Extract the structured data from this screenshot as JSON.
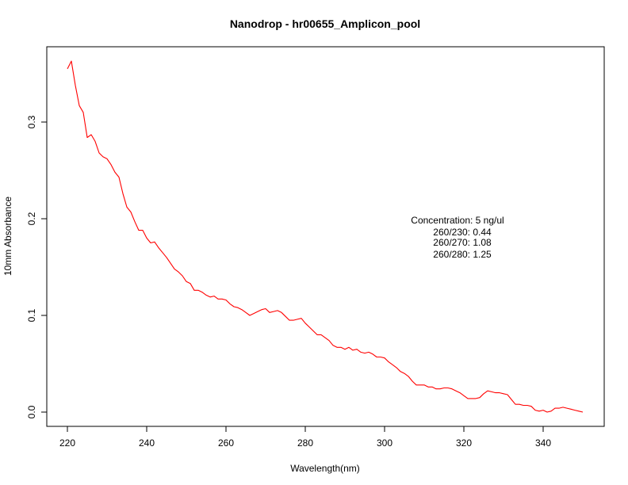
{
  "chart_data": {
    "type": "line",
    "title": "Nanodrop - hr00655_Amplicon_pool",
    "xlabel": "Wavelength(nm)",
    "ylabel": "10mm Absorbance",
    "xlim": [
      220,
      350
    ],
    "ylim": [
      0,
      0.365
    ],
    "grid": false,
    "x_ticks": [
      220,
      240,
      260,
      280,
      300,
      320,
      340
    ],
    "y_ticks": [
      0.0,
      0.1,
      0.2,
      0.3
    ],
    "y_tick_labels": [
      "0.0",
      "0.1",
      "0.2",
      "0.3"
    ],
    "series": [
      {
        "color": "#ff0000",
        "x": [
          220,
          221,
          222,
          223,
          224,
          225,
          226,
          227,
          228,
          229,
          230,
          231,
          232,
          233,
          234,
          235,
          236,
          237,
          238,
          239,
          240,
          241,
          242,
          243,
          244,
          245,
          246,
          247,
          248,
          249,
          250,
          251,
          252,
          253,
          254,
          255,
          256,
          257,
          258,
          259,
          260,
          261,
          262,
          263,
          264,
          265,
          266,
          267,
          268,
          269,
          270,
          271,
          272,
          273,
          274,
          275,
          276,
          277,
          278,
          279,
          280,
          281,
          282,
          283,
          284,
          285,
          286,
          287,
          288,
          289,
          290,
          291,
          292,
          293,
          294,
          295,
          296,
          297,
          298,
          299,
          300,
          301,
          302,
          303,
          304,
          305,
          306,
          307,
          308,
          309,
          310,
          311,
          312,
          313,
          314,
          315,
          316,
          317,
          318,
          319,
          320,
          321,
          322,
          323,
          324,
          325,
          326,
          327,
          328,
          329,
          330,
          331,
          332,
          333,
          334,
          335,
          336,
          337,
          338,
          339,
          340,
          341,
          342,
          343,
          344,
          345,
          346,
          347,
          348,
          349,
          350
        ],
        "y": [
          0.355,
          0.363,
          0.338,
          0.317,
          0.31,
          0.284,
          0.287,
          0.28,
          0.268,
          0.264,
          0.262,
          0.256,
          0.248,
          0.243,
          0.226,
          0.212,
          0.207,
          0.197,
          0.188,
          0.188,
          0.18,
          0.175,
          0.176,
          0.17,
          0.165,
          0.16,
          0.154,
          0.148,
          0.145,
          0.141,
          0.135,
          0.133,
          0.126,
          0.126,
          0.124,
          0.121,
          0.119,
          0.12,
          0.117,
          0.117,
          0.116,
          0.112,
          0.109,
          0.108,
          0.106,
          0.103,
          0.1,
          0.102,
          0.104,
          0.106,
          0.107,
          0.103,
          0.104,
          0.105,
          0.103,
          0.099,
          0.095,
          0.095,
          0.096,
          0.097,
          0.092,
          0.088,
          0.084,
          0.08,
          0.08,
          0.077,
          0.074,
          0.069,
          0.067,
          0.067,
          0.065,
          0.067,
          0.064,
          0.065,
          0.062,
          0.061,
          0.062,
          0.06,
          0.057,
          0.057,
          0.056,
          0.052,
          0.049,
          0.046,
          0.042,
          0.04,
          0.037,
          0.032,
          0.028,
          0.028,
          0.028,
          0.026,
          0.026,
          0.024,
          0.024,
          0.025,
          0.025,
          0.024,
          0.022,
          0.02,
          0.017,
          0.014,
          0.014,
          0.014,
          0.015,
          0.019,
          0.022,
          0.021,
          0.02,
          0.02,
          0.019,
          0.018,
          0.013,
          0.008,
          0.008,
          0.007,
          0.007,
          0.006,
          0.002,
          0.001,
          0.002,
          0.0,
          0.001,
          0.004,
          0.004,
          0.005,
          0.004,
          0.003,
          0.002,
          0.001,
          0.0
        ]
      }
    ],
    "annotations": [
      "Concentration: 5 ng/ul",
      "260/230: 0.44",
      "260/270: 1.08",
      "260/280: 1.25"
    ]
  }
}
